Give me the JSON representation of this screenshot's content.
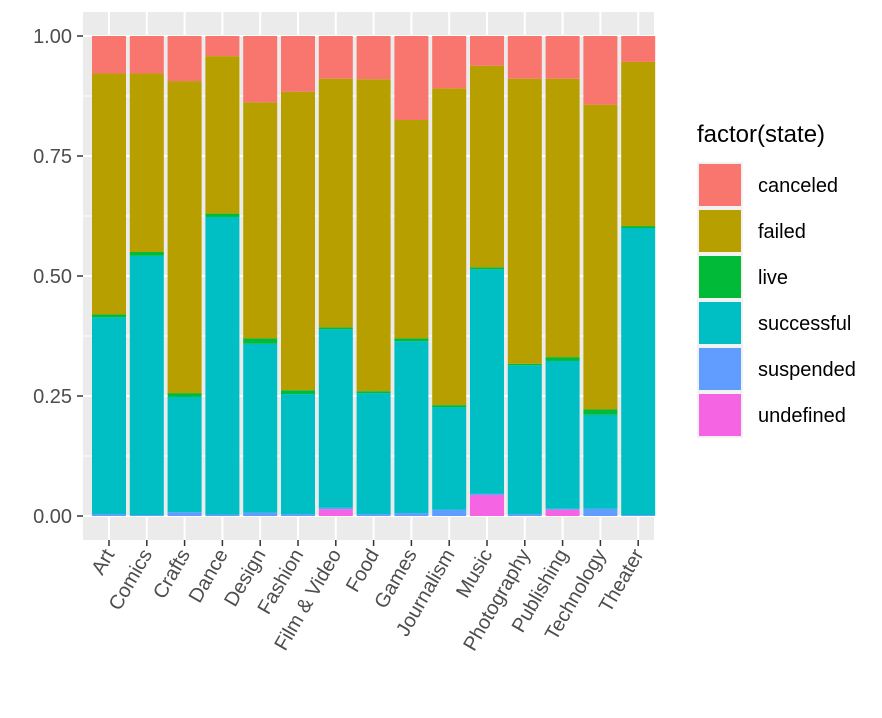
{
  "chart_data": {
    "type": "bar",
    "stacked": true,
    "normalized": true,
    "categories": [
      "Art",
      "Comics",
      "Crafts",
      "Dance",
      "Design",
      "Fashion",
      "Film & Video",
      "Food",
      "Games",
      "Journalism",
      "Music",
      "Photography",
      "Publishing",
      "Technology",
      "Theater"
    ],
    "yticks": [
      "0.00",
      "0.25",
      "0.50",
      "0.75",
      "1.00"
    ],
    "ylim": [
      0,
      1
    ],
    "grid": true,
    "xlabel": "",
    "ylabel": "",
    "x_tick_rotation_deg": 60,
    "legend": {
      "title": "factor(state)",
      "position": "right"
    },
    "series": [
      {
        "name": "undefined",
        "color": "#F564E3",
        "values": [
          0.0,
          0.0,
          0.0,
          0.0,
          0.0,
          0.0,
          0.014,
          0.0,
          0.0,
          0.0,
          0.044,
          0.0,
          0.013,
          0.0,
          0.0
        ]
      },
      {
        "name": "suspended",
        "color": "#619CFF",
        "values": [
          0.004,
          0.002,
          0.008,
          0.003,
          0.007,
          0.004,
          0.003,
          0.004,
          0.006,
          0.013,
          0.002,
          0.004,
          0.002,
          0.015,
          0.002
        ]
      },
      {
        "name": "successful",
        "color": "#00BFC4",
        "values": [
          0.41,
          0.54,
          0.24,
          0.62,
          0.352,
          0.25,
          0.372,
          0.252,
          0.358,
          0.214,
          0.468,
          0.31,
          0.308,
          0.196,
          0.598
        ]
      },
      {
        "name": "live",
        "color": "#00BA38",
        "values": [
          0.006,
          0.008,
          0.008,
          0.007,
          0.011,
          0.008,
          0.004,
          0.004,
          0.006,
          0.004,
          0.004,
          0.003,
          0.008,
          0.011,
          0.004
        ]
      },
      {
        "name": "failed",
        "color": "#B79F00",
        "values": [
          0.502,
          0.372,
          0.65,
          0.328,
          0.492,
          0.622,
          0.518,
          0.65,
          0.455,
          0.66,
          0.42,
          0.594,
          0.58,
          0.635,
          0.342
        ]
      },
      {
        "name": "canceled",
        "color": "#F8766D",
        "values": [
          0.078,
          0.078,
          0.094,
          0.042,
          0.138,
          0.116,
          0.089,
          0.09,
          0.175,
          0.109,
          0.062,
          0.089,
          0.089,
          0.143,
          0.054
        ]
      }
    ],
    "legend_order": [
      "canceled",
      "failed",
      "live",
      "successful",
      "suspended",
      "undefined"
    ]
  }
}
